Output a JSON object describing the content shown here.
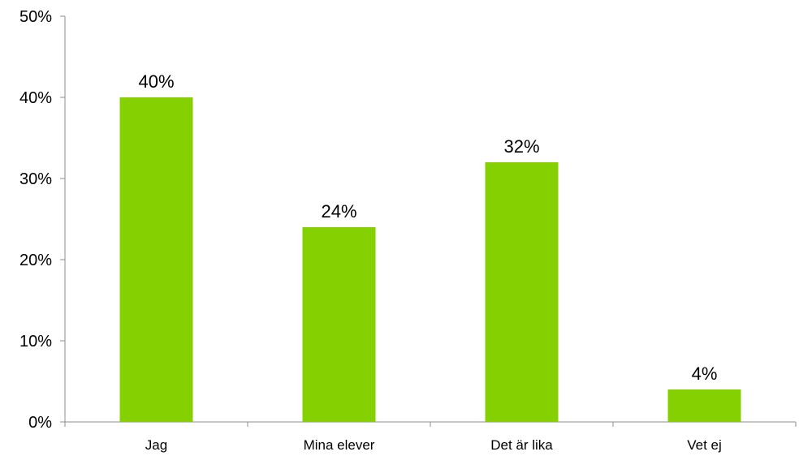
{
  "chart_data": {
    "type": "bar",
    "categories": [
      "Jag",
      "Mina elever",
      "Det är lika",
      "Vet ej"
    ],
    "values": [
      40,
      24,
      32,
      4
    ],
    "data_labels": [
      "40%",
      "24%",
      "32%",
      "4%"
    ],
    "title": "",
    "xlabel": "",
    "ylabel": "",
    "ylim": [
      0,
      50
    ],
    "yticks": [
      0,
      10,
      20,
      30,
      40,
      50
    ],
    "ytick_labels": [
      "0%",
      "10%",
      "20%",
      "30%",
      "40%",
      "50%"
    ],
    "grid": false,
    "legend": "none",
    "bar_color": "#84d000"
  }
}
